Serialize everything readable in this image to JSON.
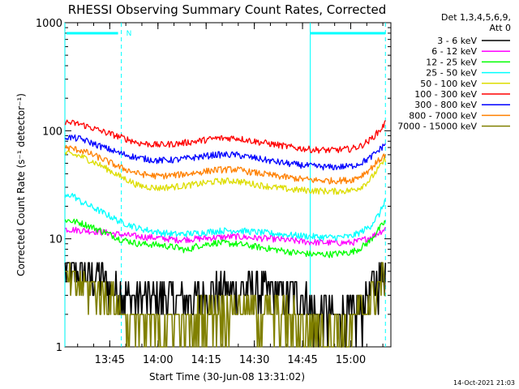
{
  "chart_data": {
    "type": "line",
    "title": "RHESSI Observing Summary Count Rates, Corrected",
    "xlabel": "Start Time (30-Jun-08 13:31:02)",
    "ylabel": "Corrected Count Rate (s⁻¹ detector⁻¹)",
    "ylog": true,
    "ylim": [
      1,
      1000
    ],
    "yticks": [
      {
        "v": 1,
        "label": "1"
      },
      {
        "v": 10,
        "label": "10"
      },
      {
        "v": 100,
        "label": "100"
      },
      {
        "v": 1000,
        "label": "1000"
      }
    ],
    "xlim": [
      13.5172,
      15.2083
    ],
    "xticks": [
      {
        "v": 13.75,
        "label": "13:45"
      },
      {
        "v": 14.0,
        "label": "14:00"
      },
      {
        "v": 14.25,
        "label": "14:15"
      },
      {
        "v": 14.5,
        "label": "14:30"
      },
      {
        "v": 14.75,
        "label": "14:45"
      },
      {
        "v": 15.0,
        "label": "15:00"
      }
    ],
    "legend_header": [
      "Det 1,3,4,5,6,9,",
      "Att 0"
    ],
    "legend_placement": "right",
    "night_boundaries": [
      13.517,
      13.81,
      14.79,
      15.18
    ],
    "saa_marker_label": "N",
    "footer": "14-Oct-2021 21:03",
    "series": [
      {
        "name": "3 - 6 keV",
        "color": "#000000",
        "x": [
          13.52,
          13.6,
          13.7,
          13.75,
          13.8,
          13.85,
          14.0,
          14.2,
          14.3,
          14.5,
          14.6,
          14.7,
          14.75,
          14.8,
          14.9,
          15.0,
          15.05,
          15.1,
          15.15,
          15.18
        ],
        "y": [
          5.2,
          5.0,
          4.6,
          3.8,
          3.2,
          2.9,
          2.9,
          2.9,
          3.3,
          3.4,
          3.2,
          3.1,
          2.9,
          2.3,
          1.9,
          2.0,
          2.3,
          3.2,
          4.5,
          5.5
        ]
      },
      {
        "name": "6 - 12 keV",
        "color": "#ff00ff",
        "x": [
          13.52,
          13.6,
          13.7,
          13.8,
          13.9,
          14.0,
          14.1,
          14.2,
          14.3,
          14.4,
          14.5,
          14.6,
          14.7,
          14.8,
          14.9,
          15.0,
          15.05,
          15.1,
          15.15,
          15.18
        ],
        "y": [
          12.3,
          12.0,
          11.6,
          11.0,
          10.5,
          10.2,
          9.8,
          10.0,
          10.3,
          10.5,
          10.2,
          10.0,
          9.6,
          9.3,
          9.2,
          9.2,
          9.6,
          10.3,
          11.5,
          12.5
        ]
      },
      {
        "name": "12 - 25 keV",
        "color": "#00ff00",
        "x": [
          13.52,
          13.6,
          13.7,
          13.8,
          13.9,
          14.0,
          14.1,
          14.15,
          14.2,
          14.3,
          14.4,
          14.5,
          14.6,
          14.7,
          14.8,
          14.9,
          15.0,
          15.05,
          15.1,
          15.15,
          15.18
        ],
        "y": [
          15.0,
          14.0,
          12.0,
          10.0,
          9.0,
          8.8,
          8.3,
          7.8,
          8.6,
          9.2,
          9.0,
          8.5,
          8.0,
          7.5,
          7.2,
          7.2,
          7.5,
          8.2,
          9.5,
          12.5,
          14.5
        ]
      },
      {
        "name": "25 - 50 keV",
        "color": "#00ffff",
        "x": [
          13.52,
          13.55,
          13.6,
          13.7,
          13.8,
          13.9,
          14.0,
          14.1,
          14.2,
          14.3,
          14.4,
          14.5,
          14.6,
          14.7,
          14.8,
          14.9,
          15.0,
          15.05,
          15.1,
          15.15,
          15.18
        ],
        "y": [
          24.0,
          26.0,
          22.0,
          18.0,
          14.5,
          12.5,
          11.5,
          11.0,
          11.3,
          11.8,
          12.0,
          11.6,
          11.2,
          10.8,
          10.5,
          10.3,
          10.5,
          11.5,
          13.0,
          17.0,
          23.0
        ]
      },
      {
        "name": "50 - 100 keV",
        "color": "#dddd00",
        "x": [
          13.52,
          13.6,
          13.7,
          13.8,
          13.9,
          14.0,
          14.1,
          14.2,
          14.3,
          14.4,
          14.5,
          14.6,
          14.7,
          14.8,
          14.9,
          15.0,
          15.05,
          15.1,
          15.15,
          15.18
        ],
        "y": [
          62.0,
          58.0,
          48.0,
          38.0,
          31.0,
          29.5,
          30.5,
          32.0,
          34.0,
          34.5,
          32.0,
          30.0,
          28.5,
          28.0,
          27.5,
          28.0,
          30.0,
          35.0,
          46.0,
          55.0
        ]
      },
      {
        "name": "100 - 300 keV",
        "color": "#ff0000",
        "x": [
          13.52,
          13.6,
          13.7,
          13.8,
          13.9,
          14.0,
          14.1,
          14.2,
          14.3,
          14.4,
          14.5,
          14.6,
          14.7,
          14.8,
          14.9,
          15.0,
          15.05,
          15.1,
          15.15,
          15.18
        ],
        "y": [
          120.0,
          115.0,
          100.0,
          88.0,
          77.0,
          74.0,
          76.0,
          80.0,
          85.0,
          86.0,
          80.0,
          75.0,
          70.0,
          67.0,
          66.0,
          68.0,
          72.0,
          82.0,
          100.0,
          118.0
        ]
      },
      {
        "name": "300 - 800 keV",
        "color": "#0000ff",
        "x": [
          13.52,
          13.6,
          13.7,
          13.8,
          13.9,
          14.0,
          14.1,
          14.2,
          14.3,
          14.4,
          14.5,
          14.6,
          14.7,
          14.8,
          14.9,
          15.0,
          15.05,
          15.1,
          15.15,
          15.18
        ],
        "y": [
          88.0,
          84.0,
          72.0,
          62.0,
          56.0,
          53.0,
          54.0,
          57.0,
          60.0,
          60.0,
          56.0,
          52.0,
          49.0,
          47.0,
          46.0,
          47.0,
          50.0,
          56.0,
          67.0,
          76.0
        ]
      },
      {
        "name": "800 - 7000 keV",
        "color": "#ff8000",
        "x": [
          13.52,
          13.6,
          13.7,
          13.8,
          13.9,
          14.0,
          14.1,
          14.2,
          14.3,
          14.4,
          14.5,
          14.6,
          14.7,
          14.8,
          14.9,
          15.0,
          15.05,
          15.1,
          15.15,
          15.18
        ],
        "y": [
          70.0,
          66.0,
          56.0,
          46.0,
          40.0,
          38.0,
          39.0,
          41.0,
          43.5,
          44.0,
          41.0,
          38.5,
          36.5,
          35.0,
          34.5,
          35.0,
          38.0,
          44.0,
          54.0,
          60.0
        ]
      },
      {
        "name": "7000 - 15000 keV",
        "color": "#808000",
        "x": [
          13.52,
          13.6,
          13.7,
          13.75,
          13.8,
          13.85,
          13.9,
          14.0,
          14.2,
          14.3,
          14.4,
          14.5,
          14.6,
          14.8,
          14.9,
          15.0,
          15.05,
          15.1,
          15.15,
          15.18
        ],
        "y": [
          4.0,
          3.8,
          3.3,
          2.8,
          2.3,
          1.8,
          1.6,
          1.6,
          1.8,
          2.2,
          2.4,
          2.2,
          2.0,
          1.6,
          1.5,
          1.6,
          2.0,
          2.8,
          4.0,
          4.8
        ]
      }
    ]
  }
}
